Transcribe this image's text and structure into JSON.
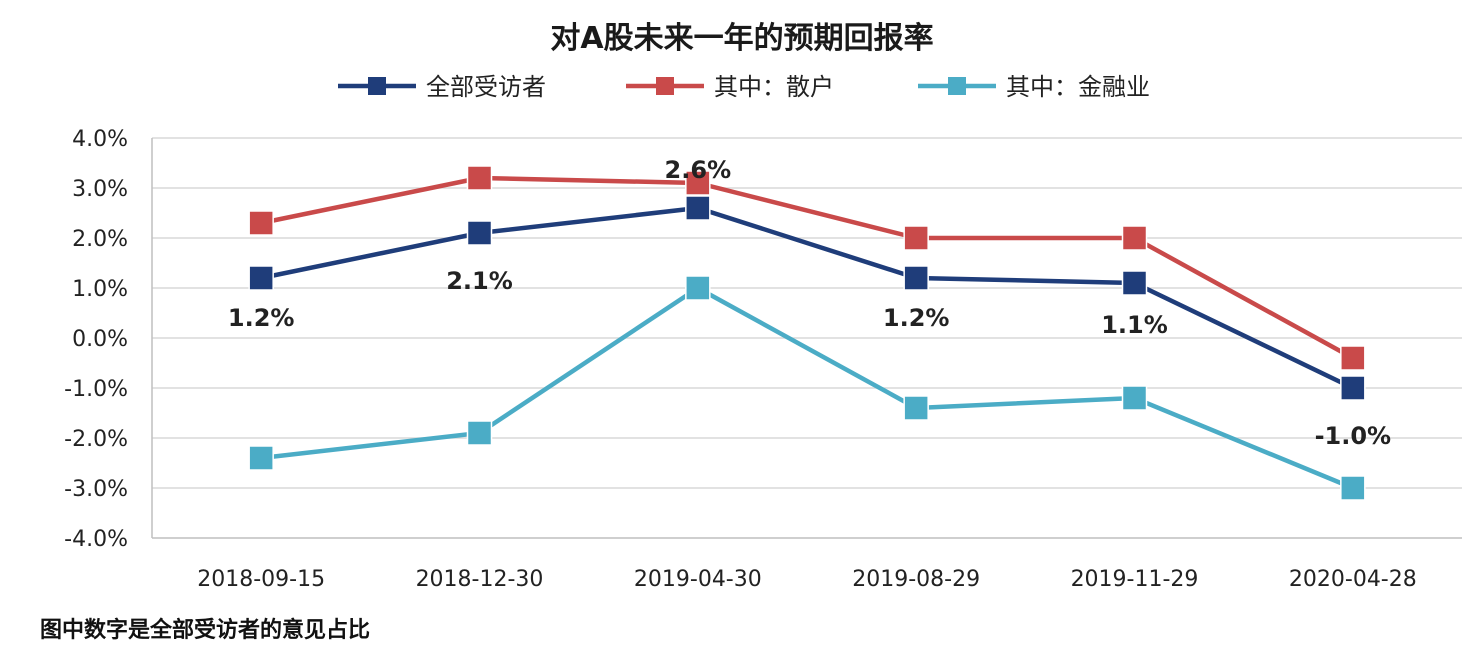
{
  "chart_data": {
    "type": "line",
    "title": "对A股未来一年的预期回报率",
    "categories": [
      "2018-09-15",
      "2018-12-30",
      "2019-04-30",
      "2019-08-29",
      "2019-11-29",
      "2020-04-28"
    ],
    "ylim": [
      -4.0,
      4.0
    ],
    "yticks": [
      4.0,
      3.0,
      2.0,
      1.0,
      0.0,
      -1.0,
      -2.0,
      -3.0,
      -4.0
    ],
    "ytick_labels": [
      "4.0%",
      "3.0%",
      "2.0%",
      "1.0%",
      "0.0%",
      "-1.0%",
      "-2.0%",
      "-3.0%",
      "-4.0%"
    ],
    "grid": true,
    "legend_position": "top-center",
    "series": [
      {
        "name": "全部受访者",
        "color": "#1F3D7A",
        "values": [
          1.2,
          2.1,
          2.6,
          1.2,
          1.1,
          -1.0
        ]
      },
      {
        "name": "其中：散户",
        "color": "#C94A4A",
        "values": [
          2.3,
          3.2,
          3.1,
          2.0,
          2.0,
          -0.4
        ]
      },
      {
        "name": "其中：金融业",
        "color": "#4BACC6",
        "values": [
          -2.4,
          -1.9,
          1.0,
          -1.4,
          -1.2,
          -3.0
        ]
      }
    ],
    "data_labels": [
      "1.2%",
      "2.1%",
      "2.6%",
      "1.2%",
      "1.1%",
      "-1.0%"
    ]
  },
  "footnote": "图中数字是全部受访者的意见占比"
}
